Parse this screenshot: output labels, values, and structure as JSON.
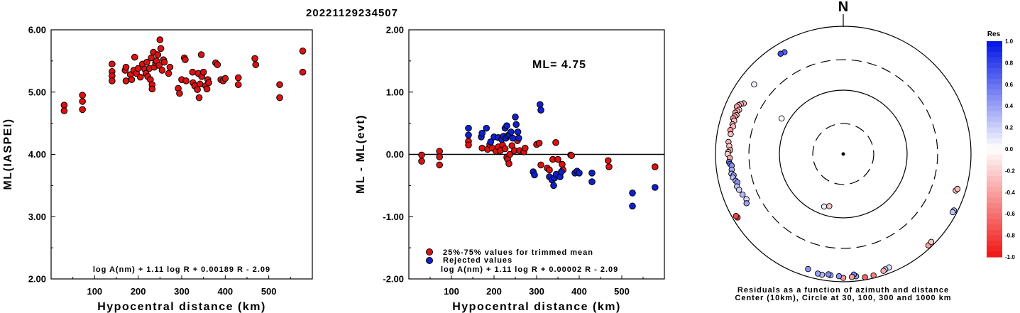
{
  "title": "20221129234507",
  "chart_data": [
    {
      "type": "scatter",
      "xlabel": "Hypocentral distance (km)",
      "ylabel": "ML(IASPEI)",
      "xlim": [
        0,
        600
      ],
      "ylim": [
        2.0,
        6.0
      ],
      "xticks": [
        "100",
        "200",
        "300",
        "400",
        "500"
      ],
      "yticks": [
        "2.00",
        "3.00",
        "4.00",
        "5.00",
        "6.00"
      ],
      "formula": "log A(nm) + 1.11 log R + 0.00189 R - 2.09",
      "points_color": "#dd1111",
      "points": [
        [
          30,
          4.79
        ],
        [
          30,
          4.7
        ],
        [
          72,
          4.95
        ],
        [
          72,
          4.85
        ],
        [
          72,
          4.72
        ],
        [
          140,
          5.45
        ],
        [
          140,
          5.33
        ],
        [
          140,
          5.26
        ],
        [
          140,
          5.18
        ],
        [
          170,
          5.35
        ],
        [
          172,
          5.4
        ],
        [
          172,
          5.18
        ],
        [
          182,
          5.28
        ],
        [
          185,
          5.2
        ],
        [
          190,
          5.35
        ],
        [
          192,
          5.56
        ],
        [
          196,
          5.3
        ],
        [
          200,
          5.38
        ],
        [
          205,
          5.24
        ],
        [
          210,
          5.45
        ],
        [
          215,
          5.37
        ],
        [
          218,
          5.3
        ],
        [
          220,
          5.48
        ],
        [
          222,
          5.25
        ],
        [
          226,
          5.38
        ],
        [
          228,
          5.2
        ],
        [
          230,
          5.55
        ],
        [
          232,
          5.12
        ],
        [
          232,
          5.05
        ],
        [
          235,
          5.64
        ],
        [
          237,
          5.4
        ],
        [
          240,
          5.47
        ],
        [
          242,
          5.5
        ],
        [
          245,
          5.6
        ],
        [
          248,
          5.43
        ],
        [
          250,
          5.84
        ],
        [
          252,
          5.7
        ],
        [
          255,
          5.35
        ],
        [
          258,
          5.52
        ],
        [
          260,
          5.48
        ],
        [
          270,
          5.3
        ],
        [
          273,
          5.4
        ],
        [
          292,
          5.06
        ],
        [
          295,
          4.98
        ],
        [
          300,
          5.2
        ],
        [
          306,
          5.55
        ],
        [
          308,
          5.52
        ],
        [
          310,
          5.18
        ],
        [
          325,
          5.32
        ],
        [
          326,
          5.15
        ],
        [
          330,
          5.1
        ],
        [
          336,
          5.04
        ],
        [
          338,
          5.3
        ],
        [
          340,
          4.91
        ],
        [
          342,
          5.13
        ],
        [
          345,
          5.6
        ],
        [
          346,
          5.25
        ],
        [
          350,
          5.32
        ],
        [
          355,
          5.1
        ],
        [
          358,
          5.05
        ],
        [
          360,
          5.2
        ],
        [
          362,
          5.15
        ],
        [
          378,
          5.47
        ],
        [
          382,
          5.44
        ],
        [
          390,
          5.2
        ],
        [
          395,
          5.18
        ],
        [
          400,
          5.22
        ],
        [
          430,
          5.23
        ],
        [
          430,
          5.12
        ],
        [
          468,
          5.54
        ],
        [
          470,
          5.44
        ],
        [
          525,
          5.12
        ],
        [
          525,
          4.91
        ],
        [
          578,
          5.66
        ],
        [
          578,
          5.32
        ]
      ]
    },
    {
      "type": "scatter",
      "xlabel": "Hypocentral distance (km)",
      "ylabel": "ML - ML(evt)",
      "xlim": [
        0,
        600
      ],
      "ylim": [
        -2.0,
        2.0
      ],
      "xticks": [
        "100",
        "200",
        "300",
        "400",
        "500"
      ],
      "yticks": [
        "-2.00",
        "-1.00",
        "0.00",
        "1.00",
        "2.00"
      ],
      "annotation": "ML= 4.75",
      "formula": "log A(nm) + 1.11 log R + 0.00002 R - 2.09",
      "legend": [
        "25%-75% values for trimmed mean",
        "Rejected values"
      ],
      "series": [
        {
          "name": "25%-75% values for trimmed mean",
          "color": "#dd1111",
          "points": [
            [
              30,
              -0.01
            ],
            [
              30,
              -0.11
            ],
            [
              72,
              0.05
            ],
            [
              72,
              -0.04
            ],
            [
              72,
              -0.17
            ],
            [
              140,
              0.21
            ],
            [
              140,
              0.15
            ],
            [
              172,
              0.1
            ],
            [
              185,
              0.08
            ],
            [
              190,
              0.16
            ],
            [
              196,
              0.1
            ],
            [
              205,
              0.05
            ],
            [
              210,
              0.12
            ],
            [
              215,
              0.06
            ],
            [
              220,
              0.15
            ],
            [
              226,
              0.09
            ],
            [
              230,
              -0.05
            ],
            [
              232,
              -0.08
            ],
            [
              235,
              -0.15
            ],
            [
              237,
              0.0
            ],
            [
              242,
              0.14
            ],
            [
              248,
              0.06
            ],
            [
              255,
              0.22
            ],
            [
              260,
              0.06
            ],
            [
              270,
              0.04
            ],
            [
              273,
              0.1
            ],
            [
              300,
              0.16
            ],
            [
              306,
              0.18
            ],
            [
              310,
              -0.17
            ],
            [
              325,
              -0.22
            ],
            [
              330,
              -0.25
            ],
            [
              338,
              -0.08
            ],
            [
              345,
              0.19
            ],
            [
              350,
              -0.08
            ],
            [
              360,
              -0.16
            ],
            [
              362,
              -0.25
            ],
            [
              380,
              -0.01
            ],
            [
              382,
              -0.02
            ],
            [
              468,
              -0.1
            ],
            [
              470,
              -0.2
            ],
            [
              578,
              -0.2
            ]
          ]
        },
        {
          "name": "Rejected values",
          "color": "#1020cc",
          "points": [
            [
              140,
              0.42
            ],
            [
              140,
              0.31
            ],
            [
              170,
              0.28
            ],
            [
              172,
              0.34
            ],
            [
              182,
              0.42
            ],
            [
              192,
              0.2
            ],
            [
              200,
              0.28
            ],
            [
              210,
              0.27
            ],
            [
              218,
              0.24
            ],
            [
              222,
              0.29
            ],
            [
              226,
              0.42
            ],
            [
              228,
              0.26
            ],
            [
              230,
              0.46
            ],
            [
              232,
              0.3
            ],
            [
              236,
              0.32
            ],
            [
              240,
              0.36
            ],
            [
              244,
              0.26
            ],
            [
              250,
              0.6
            ],
            [
              252,
              0.48
            ],
            [
              256,
              0.36
            ],
            [
              258,
              0.26
            ],
            [
              292,
              -0.28
            ],
            [
              295,
              -0.33
            ],
            [
              308,
              0.8
            ],
            [
              310,
              0.71
            ],
            [
              330,
              -0.36
            ],
            [
              336,
              -0.41
            ],
            [
              340,
              -0.5
            ],
            [
              342,
              -0.38
            ],
            [
              346,
              -0.32
            ],
            [
              355,
              -0.36
            ],
            [
              358,
              -0.28
            ],
            [
              390,
              -0.3
            ],
            [
              395,
              -0.27
            ],
            [
              400,
              -0.3
            ],
            [
              430,
              -0.3
            ],
            [
              430,
              -0.44
            ],
            [
              525,
              -0.62
            ],
            [
              525,
              -0.83
            ],
            [
              578,
              -0.53
            ]
          ]
        }
      ]
    },
    {
      "type": "scatter",
      "subtype": "polar",
      "north_label": "N",
      "caption_lines": [
        "Residuals as a function of azimuth and distance",
        "Center (10km), Circle at 30, 100, 300 and 1000 km"
      ],
      "circles_km": [
        30,
        100,
        300,
        1000
      ],
      "circle_styles": [
        "dashed",
        "solid",
        "dashed",
        "solid"
      ],
      "colorbar": {
        "title": "Res",
        "ticks": [
          "1.0",
          "0.8",
          "0.6",
          "0.4",
          "0.2",
          "0.0",
          "-0.2",
          "-0.4",
          "-0.6",
          "-0.8",
          "-1.0"
        ],
        "range": [
          -1.0,
          1.0
        ]
      },
      "stations": [
        {
          "az": 330,
          "dist_km": 690,
          "res": 0.65
        },
        {
          "az": 328,
          "dist_km": 710,
          "res": 0.75
        },
        {
          "az": 308,
          "dist_km": 590,
          "res": 0.05
        },
        {
          "az": 297,
          "dist_km": 560,
          "res": -0.35
        },
        {
          "az": 296,
          "dist_km": 610,
          "res": -0.3
        },
        {
          "az": 295,
          "dist_km": 640,
          "res": -0.28
        },
        {
          "az": 294,
          "dist_km": 665,
          "res": -0.4
        },
        {
          "az": 293,
          "dist_km": 590,
          "res": -0.22
        },
        {
          "az": 292,
          "dist_km": 620,
          "res": -0.3
        },
        {
          "az": 291,
          "dist_km": 645,
          "res": -0.45
        },
        {
          "az": 290,
          "dist_km": 600,
          "res": -0.35
        },
        {
          "az": 289,
          "dist_km": 630,
          "res": -0.38
        },
        {
          "az": 288,
          "dist_km": 650,
          "res": -0.48
        },
        {
          "az": 287,
          "dist_km": 610,
          "res": -0.25
        },
        {
          "az": 285,
          "dist_km": 625,
          "res": -0.33
        },
        {
          "az": 284,
          "dist_km": 600,
          "res": -0.3
        },
        {
          "az": 282,
          "dist_km": 640,
          "res": -0.42
        },
        {
          "az": 280,
          "dist_km": 615,
          "res": -0.28
        },
        {
          "az": 276,
          "dist_km": 640,
          "res": -0.32
        },
        {
          "az": 274,
          "dist_km": 615,
          "res": -0.25
        },
        {
          "az": 272,
          "dist_km": 590,
          "res": -0.35
        },
        {
          "az": 271,
          "dist_km": 630,
          "res": -0.3
        },
        {
          "az": 270,
          "dist_km": 645,
          "res": -0.2
        },
        {
          "az": 268,
          "dist_km": 600,
          "res": -0.4
        },
        {
          "az": 266,
          "dist_km": 620,
          "res": 0.55
        },
        {
          "az": 265,
          "dist_km": 600,
          "res": 0.62
        },
        {
          "az": 264,
          "dist_km": 570,
          "res": 0.45
        },
        {
          "az": 262,
          "dist_km": 580,
          "res": 0.35
        },
        {
          "az": 260,
          "dist_km": 600,
          "res": 0.28
        },
        {
          "az": 259,
          "dist_km": 560,
          "res": 0.4
        },
        {
          "az": 258,
          "dist_km": 585,
          "res": 0.3
        },
        {
          "az": 256,
          "dist_km": 545,
          "res": 0.35
        },
        {
          "az": 255,
          "dist_km": 520,
          "res": 0.45
        },
        {
          "az": 253,
          "dist_km": 550,
          "res": 0.25
        },
        {
          "az": 251,
          "dist_km": 530,
          "res": 0.2
        },
        {
          "az": 248,
          "dist_km": 500,
          "res": 0.3
        },
        {
          "az": 245,
          "dist_km": 470,
          "res": 0.15
        },
        {
          "az": 243,
          "dist_km": 500,
          "res": 0.4
        },
        {
          "az": 239,
          "dist_km": 850,
          "res": -0.85
        },
        {
          "az": 240,
          "dist_km": 870,
          "res": -0.8
        },
        {
          "az": 108,
          "dist_km": 710,
          "res": -0.25
        },
        {
          "az": 107,
          "dist_km": 740,
          "res": -0.3
        },
        {
          "az": 117,
          "dist_km": 880,
          "res": 0.3
        },
        {
          "az": 118,
          "dist_km": 870,
          "res": 0.25
        },
        {
          "az": 137,
          "dist_km": 900,
          "res": -0.4
        },
        {
          "az": 135,
          "dist_km": 885,
          "res": -0.25
        },
        {
          "az": 158,
          "dist_km": 820,
          "res": 0.15
        },
        {
          "az": 160,
          "dist_km": 835,
          "res": 0.22
        },
        {
          "az": 161,
          "dist_km": 860,
          "res": -0.35
        },
        {
          "az": 166,
          "dist_km": 910,
          "res": -0.55
        },
        {
          "az": 170,
          "dist_km": 910,
          "res": -0.65
        },
        {
          "az": 174,
          "dist_km": 840,
          "res": 0.4
        },
        {
          "az": 175,
          "dist_km": 785,
          "res": 0.55
        },
        {
          "az": 176,
          "dist_km": 850,
          "res": -0.4
        },
        {
          "az": 180,
          "dist_km": 870,
          "res": -0.45
        },
        {
          "az": 182,
          "dist_km": 820,
          "res": 0.45
        },
        {
          "az": 186,
          "dist_km": 810,
          "res": 0.35
        },
        {
          "az": 187,
          "dist_km": 790,
          "res": 0.5
        },
        {
          "az": 190,
          "dist_km": 830,
          "res": 0.3
        },
        {
          "az": 192,
          "dist_km": 820,
          "res": 0.4
        },
        {
          "az": 197,
          "dist_km": 765,
          "res": 0.45
        },
        {
          "az": 300,
          "dist_km": 130,
          "res": 0.0
        },
        {
          "az": 200,
          "dist_km": 75,
          "res": 0.1
        },
        {
          "az": 195,
          "dist_km": 70,
          "res": -0.25
        }
      ]
    }
  ]
}
